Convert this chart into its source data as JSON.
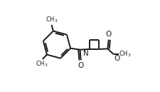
{
  "bg_color": "#ffffff",
  "line_color": "#1a1a1a",
  "line_width": 1.4,
  "font_size": 7.5,
  "figsize": [
    2.25,
    1.29
  ],
  "dpi": 100,
  "xlim": [
    0.0,
    1.0
  ],
  "ylim": [
    0.0,
    1.0
  ]
}
